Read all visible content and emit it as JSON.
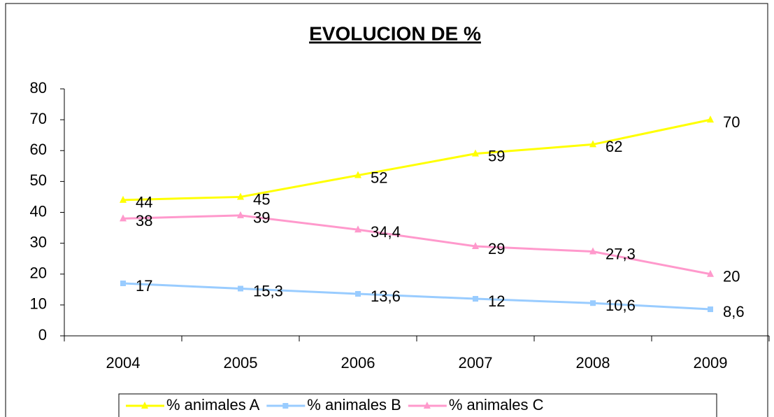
{
  "chart_data": {
    "type": "line",
    "title": "EVOLUCION DE %",
    "categories": [
      "2004",
      "2005",
      "2006",
      "2007",
      "2008",
      "2009"
    ],
    "series": [
      {
        "name": "% animales A",
        "color": "#ffff00",
        "marker": "triangle",
        "values": [
          44,
          45,
          52,
          59,
          62,
          70
        ]
      },
      {
        "name": "% animales B",
        "color": "#99ccff",
        "marker": "square",
        "values": [
          17,
          15.3,
          13.6,
          12,
          10.6,
          8.6
        ],
        "value_labels": [
          "17",
          "15,3",
          "13,6",
          "12",
          "10,6",
          "8,6"
        ]
      },
      {
        "name": "% animales C",
        "color": "#ff99cc",
        "marker": "triangle",
        "values": [
          38,
          39,
          34.4,
          29,
          27.3,
          20
        ],
        "value_labels": [
          "38",
          "39",
          "34,4",
          "29",
          "27,3",
          "20"
        ]
      }
    ],
    "ylim": [
      0,
      80
    ],
    "yticks": [
      0,
      10,
      20,
      30,
      40,
      50,
      60,
      70,
      80
    ],
    "grid": false,
    "legend": "bottom"
  }
}
